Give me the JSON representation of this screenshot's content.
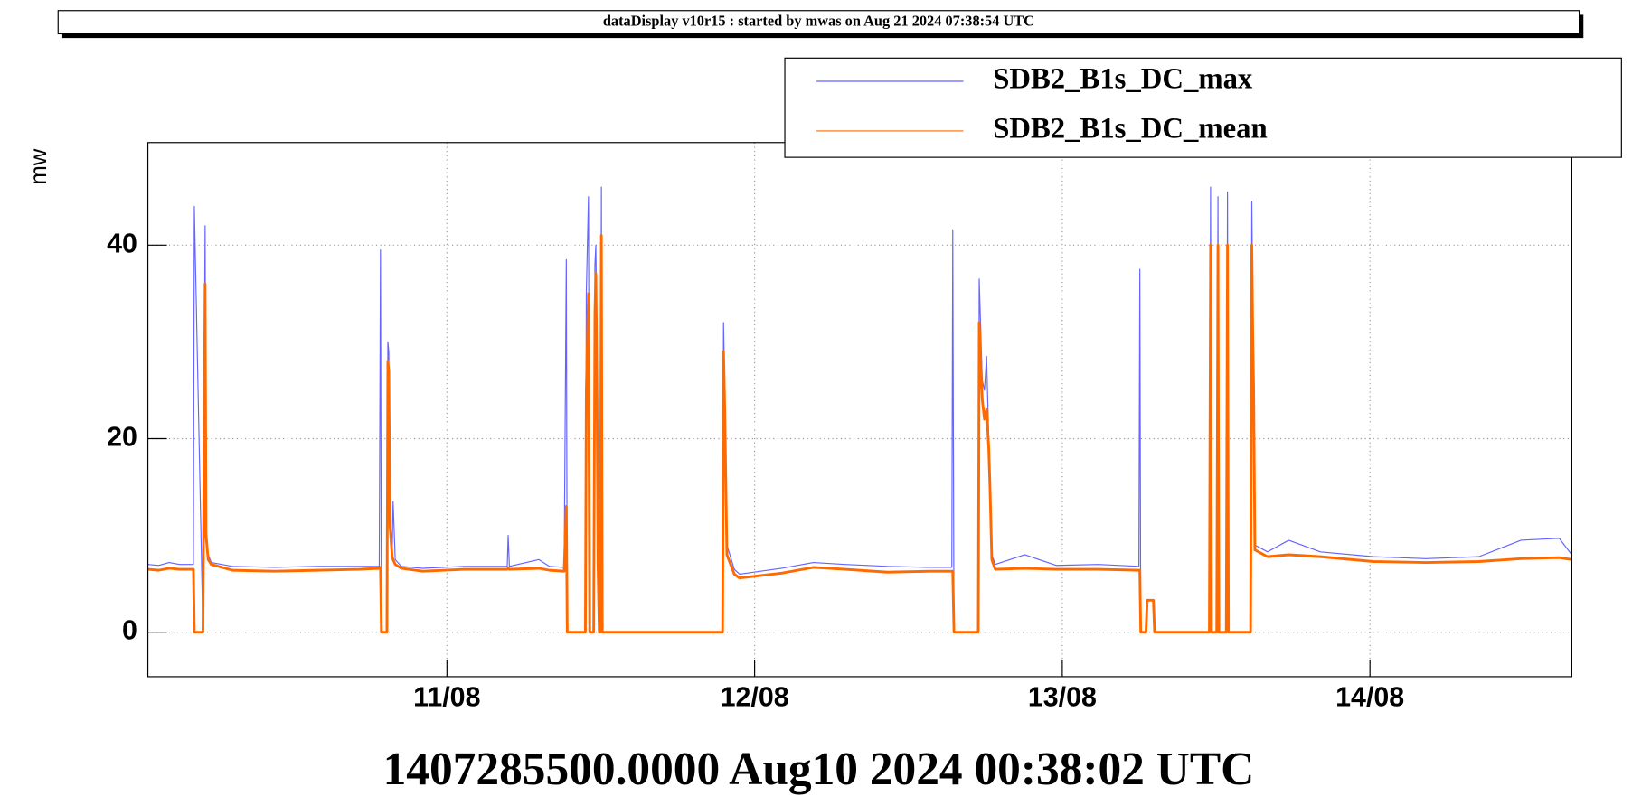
{
  "chart_data": {
    "type": "line",
    "title": "dataDisplay v10r15 : started by mwas on Aug 21 2024 07:38:54 UTC",
    "y_label": "mw",
    "x_label": "1407285500.0000 Aug10 2024 00:38:02 UTC",
    "x": [
      0.028,
      0.063,
      0.097,
      0.131,
      0.176,
      0.179,
      0.207,
      0.21,
      0.214,
      0.217,
      0.224,
      0.234,
      0.303,
      0.44,
      0.578,
      0.715,
      0.78,
      0.784,
      0.787,
      0.805,
      0.808,
      0.811,
      0.815,
      0.822,
      0.825,
      0.832,
      0.852,
      0.921,
      1.058,
      1.196,
      1.199,
      1.203,
      1.299,
      1.333,
      1.381,
      1.388,
      1.391,
      1.45,
      1.453,
      1.46,
      1.464,
      1.477,
      1.481,
      1.484,
      1.488,
      1.491,
      1.495,
      1.498,
      1.502,
      1.505,
      1.896,
      1.899,
      1.903,
      1.91,
      1.934,
      1.951,
      2.088,
      2.191,
      2.294,
      2.432,
      2.569,
      2.641,
      2.644,
      2.648,
      2.727,
      2.73,
      2.737,
      2.74,
      2.747,
      2.754,
      2.761,
      2.765,
      2.771,
      2.782,
      2.878,
      2.981,
      3.118,
      3.249,
      3.252,
      3.255,
      3.272,
      3.276,
      3.296,
      3.3,
      3.478,
      3.482,
      3.485,
      3.502,
      3.506,
      3.509,
      3.533,
      3.537,
      3.54,
      3.612,
      3.616,
      3.619,
      3.622,
      3.626,
      3.667,
      3.736,
      3.839,
      4.011,
      4.182,
      4.354,
      4.491,
      4.615,
      4.656
    ],
    "series": [
      {
        "name": "SDB2_B1s_DC_max",
        "color": "#6464ff",
        "values": [
          7.0,
          6.9,
          7.2,
          7.0,
          7.0,
          44,
          0,
          21,
          42,
          11,
          8,
          7.2,
          6.8,
          6.7,
          6.8,
          6.8,
          6.8,
          39.5,
          0,
          0,
          30,
          29,
          12,
          8,
          13.5,
          7.5,
          6.8,
          6.6,
          6.8,
          6.8,
          10,
          6.8,
          7.5,
          6.8,
          6.7,
          38.5,
          0,
          0,
          35,
          45,
          0,
          0,
          38,
          40,
          27,
          8,
          0,
          0,
          46,
          0,
          0,
          32,
          25,
          9,
          6.5,
          6,
          6.6,
          7.2,
          7,
          6.8,
          6.7,
          6.7,
          41.5,
          0,
          0,
          36.5,
          29,
          26,
          25,
          28.5,
          20,
          16,
          8,
          7,
          8,
          6.9,
          7,
          6.8,
          37.5,
          0,
          0,
          3.3,
          3.3,
          0,
          0,
          46,
          0,
          0,
          45,
          0,
          0,
          45.5,
          0,
          0,
          44.5,
          33,
          27,
          9,
          8.3,
          9.5,
          8.3,
          7.8,
          7.6,
          7.8,
          9.5,
          9.7,
          8
        ]
      },
      {
        "name": "SDB2_B1s_DC_mean",
        "color": "#ff6a00",
        "values": [
          6.5,
          6.4,
          6.6,
          6.5,
          6.5,
          0,
          0,
          16,
          36,
          10,
          7.5,
          7,
          6.4,
          6.3,
          6.4,
          6.5,
          6.6,
          6.7,
          0,
          0,
          28,
          27,
          11,
          7.8,
          7.5,
          7,
          6.6,
          6.3,
          6.5,
          6.5,
          6.6,
          6.5,
          6.6,
          6.4,
          6.3,
          13,
          0,
          0,
          25,
          35,
          0,
          0,
          33,
          37,
          24,
          7,
          0,
          0,
          41,
          0,
          0,
          29,
          23,
          8,
          6,
          5.6,
          6.1,
          6.7,
          6.5,
          6.2,
          6.3,
          6.3,
          6.3,
          0,
          0,
          32,
          26,
          24,
          22,
          23,
          19,
          15,
          7.5,
          6.5,
          6.6,
          6.5,
          6.5,
          6.4,
          6.4,
          0,
          0,
          3.3,
          3.3,
          0,
          0,
          40,
          0,
          0,
          40,
          0,
          0,
          40,
          0,
          0,
          40,
          31,
          25,
          8.5,
          7.8,
          8,
          7.8,
          7.3,
          7.2,
          7.3,
          7.6,
          7.7,
          7.5
        ]
      }
    ],
    "xlim": [
      0.028,
      4.656
    ],
    "xticks": [
      {
        "value": 1,
        "label": "11/08"
      },
      {
        "value": 2,
        "label": "12/08"
      },
      {
        "value": 3,
        "label": "13/08"
      },
      {
        "value": 4,
        "label": "14/08"
      }
    ],
    "ylim": [
      -4.6,
      50.6
    ],
    "yticks": [
      0,
      20,
      40
    ],
    "grid": true,
    "legend": "top-right"
  }
}
